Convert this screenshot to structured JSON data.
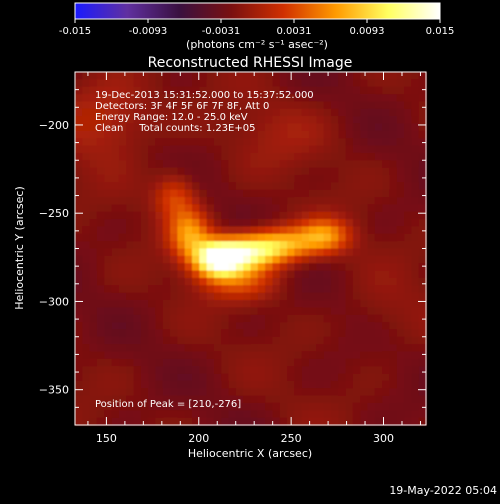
{
  "chart_data": {
    "type": "heatmap",
    "title": "Reconstructed RHESSI Image",
    "xlabel": "Heliocentric X (arcsec)",
    "ylabel": "Heliocentric Y (arcsec)",
    "xlim": [
      133,
      323
    ],
    "ylim": [
      -370,
      -170
    ],
    "x_ticks": [
      "150",
      "200",
      "250",
      "300"
    ],
    "y_ticks": [
      "-200",
      "-250",
      "-300",
      "-350"
    ],
    "colorbar": {
      "range": [
        -0.015,
        0.015
      ],
      "ticks": [
        "-0.015",
        "-0.0093",
        "-0.0031",
        "0.0031",
        "0.0093",
        "0.015"
      ],
      "label": "(photons cm⁻² s⁻¹ asec⁻²)",
      "colors": [
        "#1a1aff",
        "#6030a0",
        "#3a1040",
        "#7a1010",
        "#d03000",
        "#ff9a00",
        "#ffff60",
        "#ffffff"
      ]
    },
    "annotations": [
      "19-Dec-2013 15:31:52.000 to 15:37:52.000",
      "Detectors: 3F 4F 5F 6F 7F 8F, Att 0",
      "Energy Range: 12.0 - 25.0 keV",
      "Clean     Total counts: 1.23E+05"
    ],
    "peak_label": "Position of Peak = [210,-276]",
    "sources": [
      {
        "x": 210,
        "y": -276,
        "amp": 0.015,
        "sx": 9,
        "sy": 7
      },
      {
        "x": 225,
        "y": -272,
        "amp": 0.012,
        "sx": 12,
        "sy": 7
      },
      {
        "x": 245,
        "y": -268,
        "amp": 0.009,
        "sx": 12,
        "sy": 7
      },
      {
        "x": 268,
        "y": -263,
        "amp": 0.008,
        "sx": 10,
        "sy": 7
      },
      {
        "x": 195,
        "y": -262,
        "amp": 0.008,
        "sx": 8,
        "sy": 10
      },
      {
        "x": 187,
        "y": -240,
        "amp": 0.005,
        "sx": 8,
        "sy": 9
      },
      {
        "x": 222,
        "y": -288,
        "amp": 0.005,
        "sx": 15,
        "sy": 8
      },
      {
        "x": 150,
        "y": -195,
        "amp": 0.0035,
        "sx": 18,
        "sy": 16
      },
      {
        "x": 245,
        "y": -205,
        "amp": 0.0015,
        "sx": 20,
        "sy": 14
      },
      {
        "x": 300,
        "y": -310,
        "amp": 0.0012,
        "sx": 16,
        "sy": 14
      }
    ],
    "background": -0.0022
  },
  "footer": {
    "timestamp": "19-May-2022 05:04"
  }
}
